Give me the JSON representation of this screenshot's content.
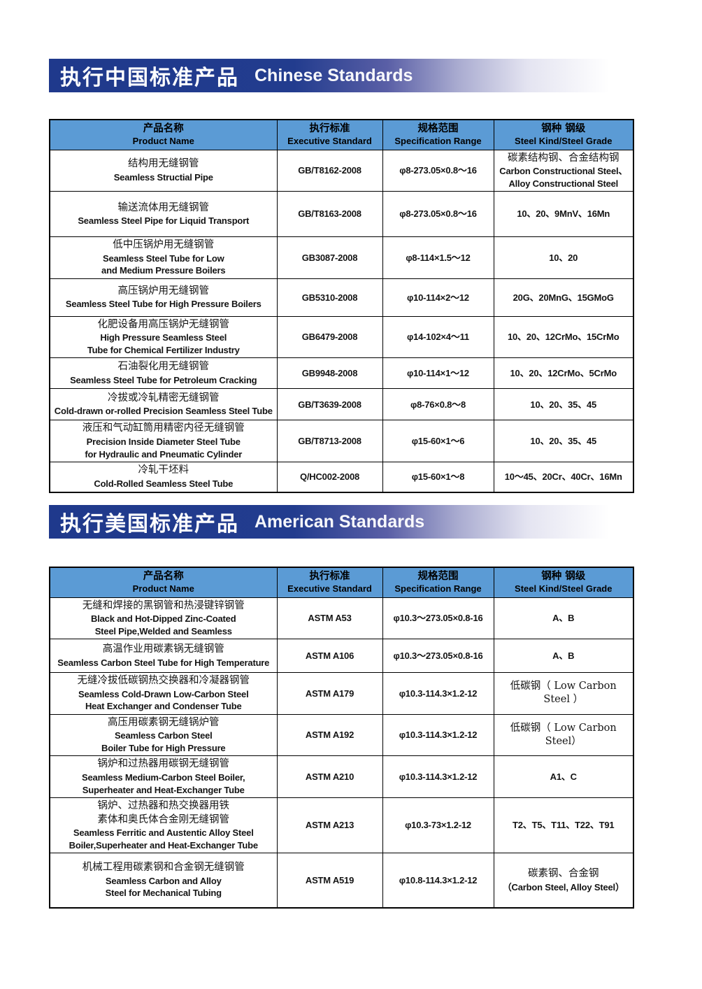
{
  "theme": {
    "band_navy": "#1f398c",
    "header_blue": "#5b9bd5",
    "border_black": "#000000"
  },
  "sections": [
    {
      "title_cn": "执行中国标准产品",
      "title_en": "Chinese Standards",
      "columns": [
        {
          "cn": "产品名称",
          "en": "Product Name"
        },
        {
          "cn": "执行标准",
          "en": "Executive Standard"
        },
        {
          "cn": "规格范围",
          "en": "Specification Range"
        },
        {
          "cn": "钢种 钢级",
          "en": "Steel Kind/Steel Grade"
        }
      ],
      "rows": [
        {
          "product": [
            "结构用无缝钢管",
            "Seamless Structial Pipe"
          ],
          "standard": "GB/T8162-2008",
          "spec": "φ8-273.05×0.8～16",
          "grade": [
            "碳素结构钢、合金结构钢",
            "Carbon Constructional Steel、",
            "Alloy Constructional Steel"
          ]
        },
        {
          "product": [
            "输送流体用无缝钢管",
            "Seamless Steel Pipe for Liquid Transport"
          ],
          "standard": "GB/T8163-2008",
          "spec": "φ8-273.05×0.8～16",
          "grade": [
            "10、20、9MnV、16Mn"
          ]
        },
        {
          "product": [
            "低中压锅炉用无缝钢管",
            "Seamless Steel Tube for Low",
            "and Medium Pressure Boilers"
          ],
          "standard": "GB3087-2008",
          "spec": "φ8-114×1.5～12",
          "grade": [
            "10、20"
          ]
        },
        {
          "product": [
            "高压锅炉用无缝钢管",
            "Seamless Steel Tube for High Pressure Boilers"
          ],
          "standard": "GB5310-2008",
          "spec": "φ10-114×2～12",
          "grade": [
            "20G、20MnG、15GMoG"
          ]
        },
        {
          "product": [
            "化肥设备用高压锅炉无缝钢管",
            "High Pressure Seamless Steel",
            "Tube for Chemical Fertilizer Industry"
          ],
          "standard": "GB6479-2008",
          "spec": "φ14-102×4～11",
          "grade": [
            "10、20、12CrMo、15CrMo"
          ]
        },
        {
          "product": [
            "石油裂化用无缝钢管",
            "Seamless Steel Tube for Petroleum Cracking"
          ],
          "standard": "GB9948-2008",
          "spec": "φ10-114×1～12",
          "grade": [
            "10、20、12CrMo、5CrMo"
          ]
        },
        {
          "product": [
            "冷拔或冷轧精密无缝钢管",
            "Cold-drawn or-rolled Precision Seamless Steel Tube"
          ],
          "standard": "GB/T3639-2008",
          "spec": "φ8-76×0.8～8",
          "grade": [
            "10、20、35、45"
          ]
        },
        {
          "product": [
            "液压和气动缸筒用精密内径无缝钢管",
            "Precision Inside Diameter Steel Tube",
            "for Hydraulic and Pneumatic Cylinder"
          ],
          "standard": "GB/T8713-2008",
          "spec": "φ15-60×1～6",
          "grade": [
            "10、20、35、45"
          ]
        },
        {
          "product": [
            "冷轧干坯料",
            "Cold-Rolled Seamless Steel Tube"
          ],
          "standard": "Q/HC002-2008",
          "spec": "φ15-60×1～8",
          "grade": [
            "10～45、20Cr、40Cr、16Mn"
          ]
        }
      ]
    },
    {
      "title_cn": "执行美国标准产品",
      "title_en": "American Standards",
      "columns": [
        {
          "cn": "产品名称",
          "en": "Product Name"
        },
        {
          "cn": "执行标准",
          "en": "Executive Standard"
        },
        {
          "cn": "规格范围",
          "en": "Specification Range"
        },
        {
          "cn": "钢种 钢级",
          "en": "Steel Kind/Steel Grade"
        }
      ],
      "rows": [
        {
          "product": [
            "无缝和焊接的黑钢管和热浸键锌钢管",
            "Black and Hot-Dipped Zinc-Coated",
            "Steel Pipe,Welded and Seamless"
          ],
          "standard": "ASTM A53",
          "spec": "φ10.3～273.05×0.8-16",
          "grade": [
            "A、B"
          ]
        },
        {
          "product": [
            "高温作业用碳素锅无缝钢管",
            "Seamless Carbon Steel Tube for High Temperature"
          ],
          "standard": "ASTM A106",
          "spec": "φ10.3～273.05×0.8-16",
          "grade": [
            "A、B"
          ]
        },
        {
          "product": [
            "无缝冷拔低碳钢热交换器和冷凝器钢管",
            "Seamless Cold-Drawn Low-Carbon Steel",
            "Heat Exchanger and Condenser Tube"
          ],
          "standard": "ASTM A179",
          "spec": "φ10.3-114.3×1.2-12",
          "grade": [
            "低碳钢（ Low Carbon Steel ）"
          ]
        },
        {
          "product": [
            "高压用碳素钢无缝锅炉管",
            "Seamless Carbon Steel",
            "Boiler Tube for High Pressure"
          ],
          "standard": "ASTM A192",
          "spec": "φ10.3-114.3×1.2-12",
          "grade": [
            "低碳钢（ Low Carbon Steel）"
          ]
        },
        {
          "product": [
            "锅炉和过热器用碳钢无缝钢管",
            "Seamless Medium-Carbon Steel Boiler,",
            "Superheater and Heat-Exchanger Tube"
          ],
          "standard": "ASTM A210",
          "spec": "φ10.3-114.3×1.2-12",
          "grade": [
            "A1、C"
          ]
        },
        {
          "product": [
            "锅炉、过热器和热交换器用铁",
            "素体和奥氏体合金刚无缝钢管",
            "Seamless Ferritic and Austentic Alloy Steel",
            "Boiler,Superheater and Heat-Exchanger Tube"
          ],
          "standard": "ASTM A213",
          "spec": "φ10.3-73×1.2-12",
          "grade": [
            "T2、T5、T11、T22、T91"
          ]
        },
        {
          "product": [
            "机械工程用碳素钢和合金钢无缝钢管",
            "Seamless Carbon and Alloy",
            "Steel for Mechanical Tubing"
          ],
          "standard": "ASTM A519",
          "spec": "φ10.8-114.3×1.2-12",
          "grade": [
            "碳素钢、合金钢",
            "（Carbon Steel, Alloy Steel）"
          ]
        }
      ]
    }
  ]
}
